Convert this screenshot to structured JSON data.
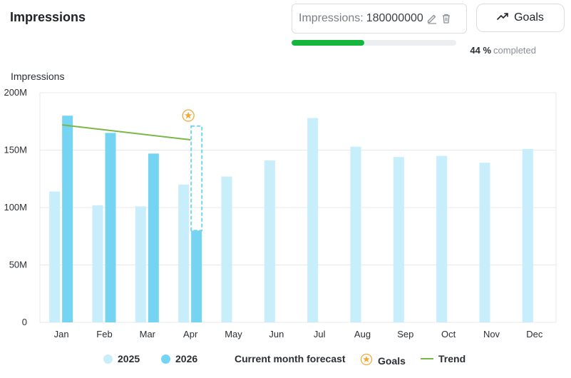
{
  "header": {
    "title": "Impressions",
    "goal_label": "Impressions:",
    "goal_value": "180000000",
    "goals_button_label": "Goals",
    "progress_percent_text": "44 %",
    "progress_suffix": "completed",
    "progress_fraction": 0.44
  },
  "colors": {
    "series_2025": "#c8eefb",
    "series_2026": "#74d4f1",
    "forecast_border": "#74d4f1",
    "goal": "#f0a93b",
    "trend": "#7ab648",
    "progress": "#14b63c",
    "grid": "#e6e8eb"
  },
  "chart_data": {
    "type": "bar",
    "ylabel": "Impressions",
    "ylim": [
      0,
      200000000
    ],
    "yticks": [
      {
        "value": 0,
        "label": "0"
      },
      {
        "value": 50000000,
        "label": "50M"
      },
      {
        "value": 100000000,
        "label": "100M"
      },
      {
        "value": 150000000,
        "label": "150M"
      },
      {
        "value": 200000000,
        "label": "200M"
      }
    ],
    "categories": [
      "Jan",
      "Feb",
      "Mar",
      "Apr",
      "May",
      "Jun",
      "Jul",
      "Aug",
      "Sep",
      "Oct",
      "Nov",
      "Dec"
    ],
    "series": [
      {
        "name": "2025",
        "values": [
          114000000,
          102000000,
          101000000,
          120000000,
          127000000,
          141000000,
          178000000,
          153000000,
          144000000,
          145000000,
          139000000,
          151000000
        ]
      },
      {
        "name": "2026",
        "values": [
          180000000,
          165000000,
          147000000,
          80000000,
          null,
          null,
          null,
          null,
          null,
          null,
          null,
          null
        ]
      }
    ],
    "forecast": {
      "name": "Current month forecast",
      "category": "Apr",
      "value": 171000000
    },
    "goal": {
      "name": "Goals",
      "category": "Apr",
      "value": 180000000
    },
    "trend": {
      "name": "Trend",
      "start": {
        "category": "Jan",
        "value": 172000000
      },
      "end": {
        "category": "Apr",
        "value": 159000000
      }
    },
    "legend": [
      "2025",
      "2026",
      "Current month forecast",
      "Goals",
      "Trend"
    ],
    "legend_position": "bottom",
    "grid": true
  }
}
